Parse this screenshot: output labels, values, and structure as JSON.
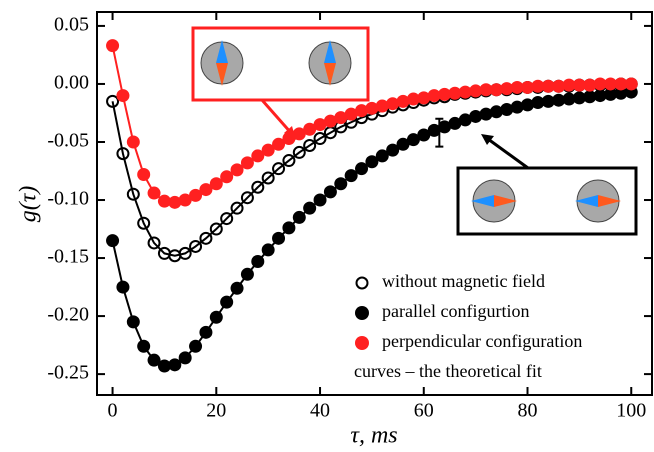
{
  "chart_data": {
    "type": "scatter",
    "xlabel": "τ, ms",
    "ylabel": "g(τ)",
    "x": [
      0,
      2,
      4,
      6,
      8,
      10,
      12,
      14,
      16,
      18,
      20,
      22,
      24,
      26,
      28,
      30,
      32,
      34,
      36,
      38,
      40,
      42,
      44,
      46,
      48,
      50,
      52,
      54,
      56,
      58,
      60,
      62,
      64,
      66,
      68,
      70,
      72,
      74,
      76,
      78,
      80,
      82,
      84,
      86,
      88,
      90,
      92,
      94,
      96,
      98,
      100
    ],
    "series": [
      {
        "name": "without magnetic field",
        "color": "#000000",
        "marker": "open",
        "values": [
          -0.015,
          -0.06,
          -0.095,
          -0.12,
          -0.137,
          -0.146,
          -0.148,
          -0.146,
          -0.14,
          -0.133,
          -0.125,
          -0.116,
          -0.107,
          -0.098,
          -0.089,
          -0.081,
          -0.073,
          -0.066,
          -0.059,
          -0.053,
          -0.047,
          -0.042,
          -0.037,
          -0.033,
          -0.029,
          -0.026,
          -0.023,
          -0.02,
          -0.018,
          -0.016,
          -0.014,
          -0.012,
          -0.011,
          -0.009,
          -0.008,
          -0.007,
          -0.006,
          -0.005,
          -0.005,
          -0.004,
          -0.003,
          -0.003,
          -0.002,
          -0.002,
          -0.002,
          -0.001,
          -0.001,
          -0.001,
          -0.001,
          0,
          0
        ]
      },
      {
        "name": "parallel configurtion",
        "color": "#000000",
        "marker": "filled",
        "values": [
          -0.135,
          -0.175,
          -0.205,
          -0.226,
          -0.238,
          -0.243,
          -0.242,
          -0.236,
          -0.226,
          -0.214,
          -0.201,
          -0.188,
          -0.176,
          -0.164,
          -0.153,
          -0.143,
          -0.133,
          -0.124,
          -0.115,
          -0.107,
          -0.1,
          -0.093,
          -0.086,
          -0.079,
          -0.073,
          -0.067,
          -0.062,
          -0.057,
          -0.052,
          -0.048,
          -0.044,
          -0.04,
          -0.037,
          -0.034,
          -0.031,
          -0.028,
          -0.026,
          -0.024,
          -0.022,
          -0.02,
          -0.018,
          -0.016,
          -0.015,
          -0.014,
          -0.013,
          -0.012,
          -0.011,
          -0.01,
          -0.009,
          -0.008,
          -0.007
        ]
      },
      {
        "name": "perpendicular configuration",
        "color": "#ff2020",
        "marker": "filled",
        "values": [
          0.033,
          -0.01,
          -0.05,
          -0.078,
          -0.094,
          -0.101,
          -0.102,
          -0.1,
          -0.096,
          -0.091,
          -0.086,
          -0.08,
          -0.074,
          -0.068,
          -0.062,
          -0.057,
          -0.052,
          -0.047,
          -0.043,
          -0.039,
          -0.035,
          -0.032,
          -0.029,
          -0.026,
          -0.023,
          -0.021,
          -0.019,
          -0.017,
          -0.015,
          -0.013,
          -0.012,
          -0.01,
          -0.009,
          -0.008,
          -0.007,
          -0.006,
          -0.005,
          -0.005,
          -0.004,
          -0.003,
          -0.003,
          -0.002,
          -0.002,
          -0.002,
          -0.001,
          -0.001,
          -0.001,
          0,
          0,
          0,
          0
        ]
      }
    ],
    "legend_note": "curves – the theoretical fit",
    "error_bar": {
      "x": 63,
      "value": -0.042,
      "error": 0.012
    },
    "xlim": [
      -3,
      104
    ],
    "ylim": [
      -0.268,
      0.062
    ],
    "xticks": [
      0,
      20,
      40,
      60,
      80,
      100
    ],
    "yticks": [
      0.05,
      {
        "value": 0,
        "label": "0.00"
      },
      -0.05,
      {
        "value": -0.1,
        "label": "-0.10"
      },
      -0.15,
      {
        "value": -0.2,
        "label": "-0.20"
      },
      -0.25
    ]
  }
}
